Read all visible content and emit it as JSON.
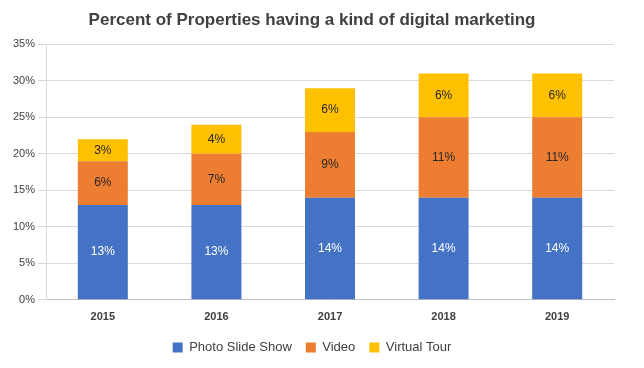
{
  "chart_data": {
    "type": "bar",
    "title": "Percent of Properties having a kind of digital marketing",
    "categories": [
      "2015",
      "2016",
      "2017",
      "2018",
      "2019"
    ],
    "series": [
      {
        "name": "Photo Slide Show",
        "color": "#4472c4",
        "values": [
          13,
          13,
          14,
          14,
          14
        ],
        "value_labels": [
          "13%",
          "13%",
          "14%",
          "14%",
          "14%"
        ]
      },
      {
        "name": "Video",
        "color": "#ed7d31",
        "values": [
          6,
          7,
          9,
          11,
          11
        ],
        "value_labels": [
          "6%",
          "7%",
          "9%",
          "11%",
          "11%"
        ]
      },
      {
        "name": "Virtual Tour",
        "color": "#ffc000",
        "values": [
          3,
          4,
          6,
          6,
          6
        ],
        "value_labels": [
          "3%",
          "4%",
          "6%",
          "6%",
          "6%"
        ]
      }
    ],
    "ylim": [
      0,
      35
    ],
    "yticks": [
      {
        "value": 0,
        "label": "0%"
      },
      {
        "value": 5,
        "label": "5%"
      },
      {
        "value": 10,
        "label": "10%"
      },
      {
        "value": 15,
        "label": "15%"
      },
      {
        "value": 20,
        "label": "20%"
      },
      {
        "value": 25,
        "label": "25%"
      },
      {
        "value": 30,
        "label": "30%"
      },
      {
        "value": 35,
        "label": "35%"
      }
    ],
    "stacked": true,
    "grid": true,
    "legend": "bottom",
    "data_labels": true
  }
}
